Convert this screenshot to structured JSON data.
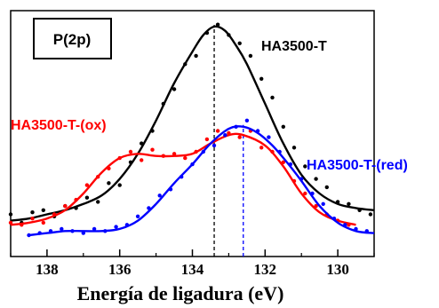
{
  "chart_data": {
    "type": "line",
    "panel_label": "P(2p)",
    "xlabel": "Energía de ligadura (eV)",
    "ylabel": "",
    "xlim": [
      139,
      129
    ],
    "x_reversed": true,
    "ylim": [
      0,
      1
    ],
    "y_ticks_shown": false,
    "xticks": [
      138,
      136,
      134,
      132,
      130
    ],
    "xtick_labels": [
      "138",
      "136",
      "134",
      "132",
      "130"
    ],
    "grid": false,
    "colors": {
      "HA3500-T": "#000000",
      "HA3500-T-(ox)": "#ff0000",
      "HA3500-T-(red)": "#0000ff"
    },
    "series": [
      {
        "name": "HA3500-T",
        "color": "#000000",
        "fit_x": [
          139,
          138.5,
          138,
          137.5,
          137,
          136.5,
          136,
          135.5,
          135,
          134.5,
          134,
          133.7,
          133.4,
          133.1,
          132.8,
          132.5,
          132,
          131.5,
          131,
          130.5,
          130,
          129.5,
          129
        ],
        "fit_y": [
          0.07,
          0.08,
          0.1,
          0.12,
          0.15,
          0.19,
          0.27,
          0.39,
          0.55,
          0.73,
          0.88,
          0.96,
          1.0,
          0.98,
          0.91,
          0.82,
          0.63,
          0.44,
          0.29,
          0.2,
          0.15,
          0.13,
          0.12
        ],
        "points_x": [
          139,
          138.7,
          138.4,
          138.1,
          137.8,
          137.5,
          137.2,
          136.9,
          136.6,
          136.3,
          136,
          135.7,
          135.4,
          135.1,
          134.8,
          134.5,
          134.2,
          133.9,
          133.6,
          133.3,
          133,
          132.7,
          132.4,
          132.1,
          131.8,
          131.5,
          131.2,
          130.9,
          130.6,
          130.3,
          130,
          129.7,
          129.4,
          129.1
        ],
        "points_y": [
          0.1,
          0.06,
          0.11,
          0.12,
          0.09,
          0.14,
          0.13,
          0.18,
          0.16,
          0.25,
          0.24,
          0.35,
          0.44,
          0.5,
          0.63,
          0.7,
          0.82,
          0.86,
          0.97,
          1.01,
          0.96,
          0.92,
          0.86,
          0.75,
          0.66,
          0.52,
          0.42,
          0.33,
          0.27,
          0.23,
          0.16,
          0.15,
          0.12,
          0.1
        ]
      },
      {
        "name": "HA3500-T-(ox)",
        "color": "#ff0000",
        "fit_x": [
          139,
          138.5,
          138,
          137.5,
          137,
          136.5,
          136,
          135.5,
          135,
          134.5,
          134,
          133.5,
          133,
          132.6,
          132,
          131.5,
          131,
          130.5,
          130,
          129.5
        ],
        "fit_y": [
          0.05,
          0.06,
          0.08,
          0.12,
          0.2,
          0.3,
          0.37,
          0.39,
          0.38,
          0.38,
          0.39,
          0.44,
          0.48,
          0.48,
          0.43,
          0.33,
          0.2,
          0.11,
          0.07,
          0.05
        ],
        "points_x": [
          139,
          138.7,
          138.4,
          138.1,
          137.8,
          137.5,
          137.2,
          136.9,
          136.6,
          136.3,
          136,
          135.7,
          135.4,
          135.1,
          134.8,
          134.5,
          134.2,
          133.9,
          133.6,
          133.3,
          133,
          132.7,
          132.4,
          132.1,
          131.8,
          131.5,
          131.2,
          130.9,
          130.6,
          130.3,
          130,
          129.7
        ],
        "points_y": [
          0.06,
          0.05,
          0.08,
          0.06,
          0.1,
          0.14,
          0.17,
          0.24,
          0.28,
          0.32,
          0.37,
          0.4,
          0.36,
          0.41,
          0.38,
          0.39,
          0.37,
          0.4,
          0.46,
          0.5,
          0.49,
          0.47,
          0.5,
          0.42,
          0.4,
          0.35,
          0.26,
          0.2,
          0.14,
          0.1,
          0.07,
          0.05
        ]
      },
      {
        "name": "HA3500-T-(red)",
        "color": "#0000ff",
        "fit_x": [
          138.5,
          138,
          137.5,
          137,
          136.5,
          136,
          135.5,
          135,
          134.5,
          134,
          133.5,
          133,
          132.6,
          132.2,
          131.8,
          131.4,
          131,
          130.5,
          130,
          129.5,
          129
        ],
        "fit_y": [
          0.0,
          0.01,
          0.02,
          0.02,
          0.02,
          0.03,
          0.07,
          0.15,
          0.25,
          0.34,
          0.44,
          0.51,
          0.52,
          0.49,
          0.43,
          0.35,
          0.26,
          0.14,
          0.06,
          0.02,
          0.01
        ],
        "points_x": [
          138.5,
          138.2,
          137.9,
          137.6,
          137.3,
          137,
          136.7,
          136.4,
          136.1,
          135.8,
          135.5,
          135.2,
          134.9,
          134.6,
          134.3,
          134,
          133.7,
          133.4,
          133.1,
          132.8,
          132.5,
          132.2,
          131.9,
          131.6,
          131.3,
          131,
          130.7,
          130.4,
          130.1,
          129.8,
          129.5,
          129.2
        ],
        "points_y": [
          0.0,
          0.01,
          0.02,
          0.03,
          0.02,
          0.01,
          0.03,
          0.02,
          0.04,
          0.05,
          0.09,
          0.13,
          0.19,
          0.22,
          0.28,
          0.34,
          0.4,
          0.43,
          0.48,
          0.52,
          0.55,
          0.5,
          0.47,
          0.4,
          0.34,
          0.27,
          0.2,
          0.15,
          0.08,
          0.05,
          0.03,
          0.02
        ]
      }
    ],
    "reference_lines": [
      {
        "x": 133.4,
        "color": "#000000",
        "style": "dashed"
      },
      {
        "x": 132.6,
        "color": "#0000ff",
        "style": "dashed"
      }
    ]
  }
}
